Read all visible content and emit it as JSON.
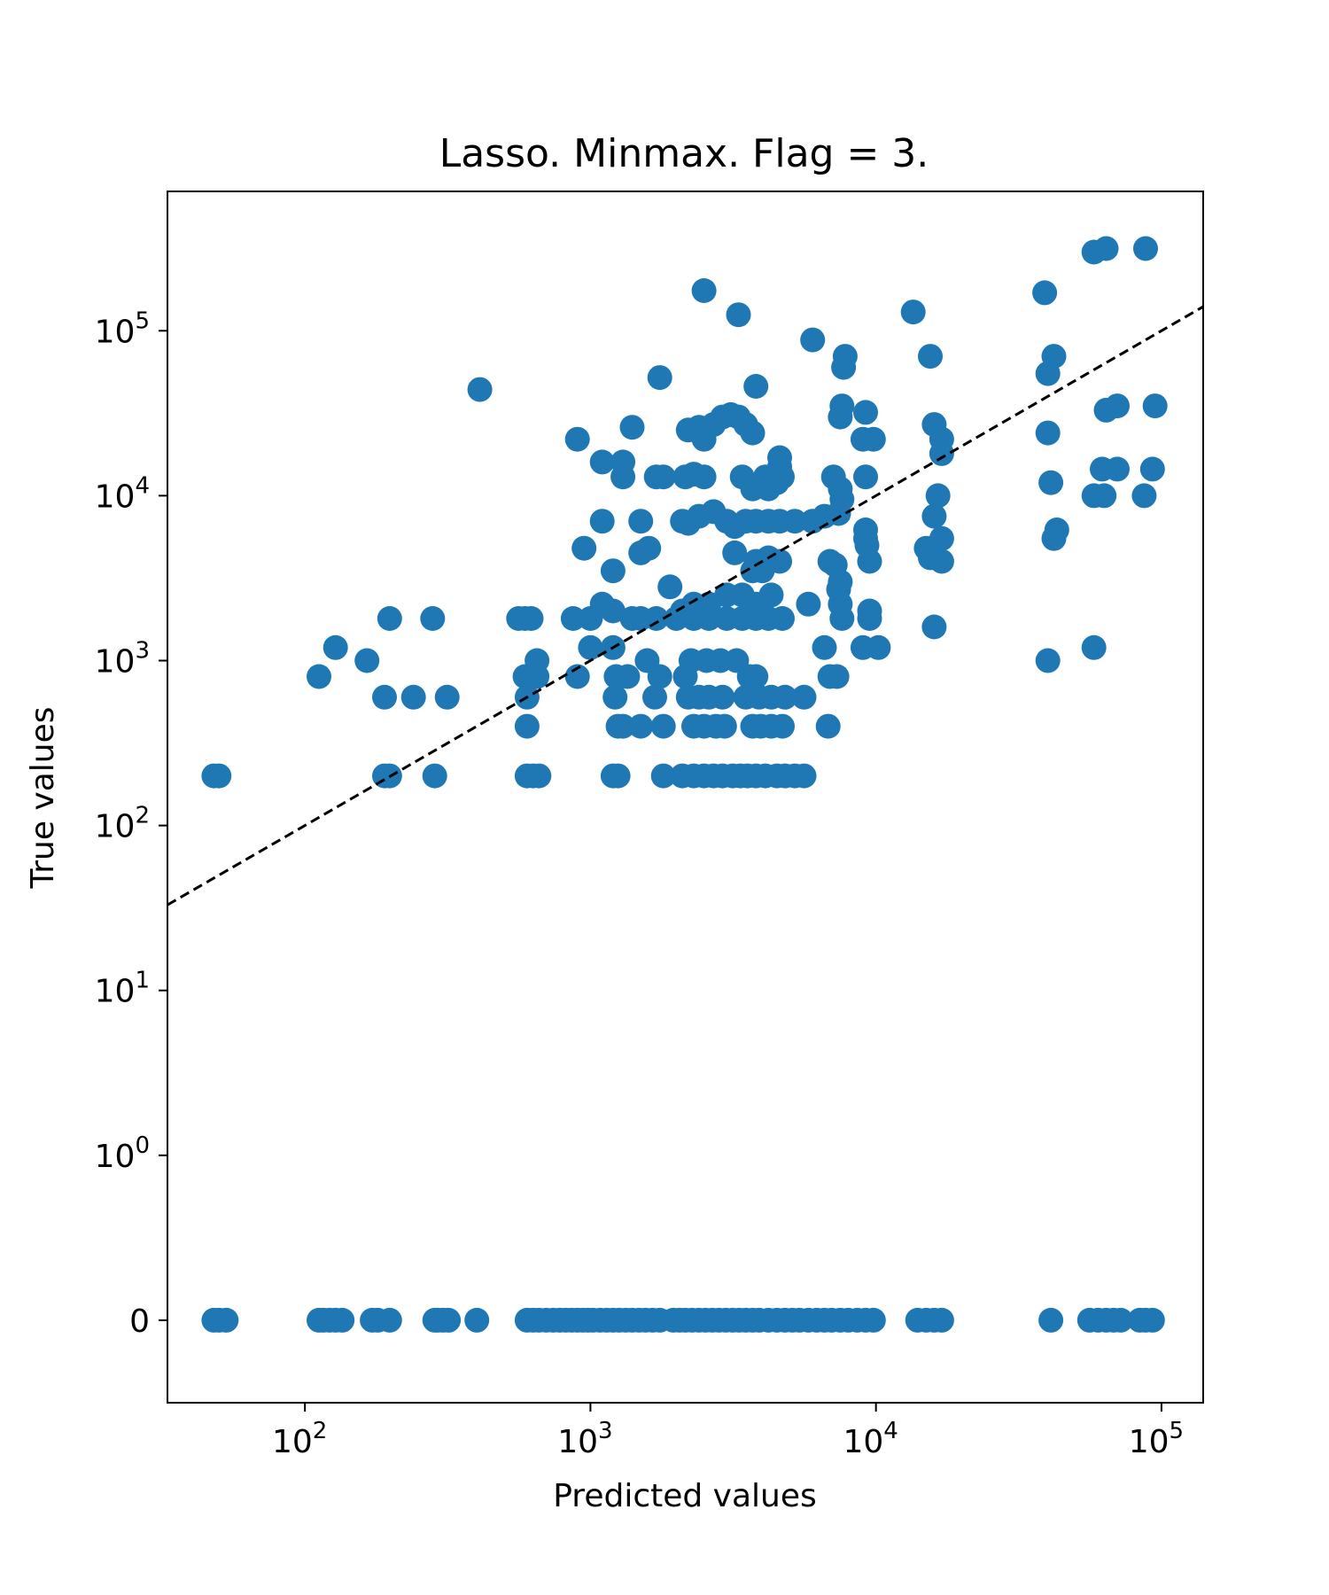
{
  "chart_data": {
    "type": "scatter",
    "title": "Lasso. Minmax. Flag = 3.",
    "xlabel": "Predicted values",
    "ylabel": "True values",
    "x_scale": "log",
    "y_scale": "symlog",
    "xlim": [
      33,
      140000
    ],
    "ylim": [
      -0.5,
      700000
    ],
    "x_ticks": [
      {
        "value": 100,
        "base": "10",
        "exp": "2"
      },
      {
        "value": 1000,
        "base": "10",
        "exp": "3"
      },
      {
        "value": 10000,
        "base": "10",
        "exp": "4"
      },
      {
        "value": 100000,
        "base": "10",
        "exp": "5"
      }
    ],
    "y_ticks": [
      {
        "value": 0,
        "text": "0"
      },
      {
        "value": 1,
        "base": "10",
        "exp": "0"
      },
      {
        "value": 10,
        "base": "10",
        "exp": "1"
      },
      {
        "value": 100,
        "base": "10",
        "exp": "2"
      },
      {
        "value": 1000,
        "base": "10",
        "exp": "3"
      },
      {
        "value": 10000,
        "base": "10",
        "exp": "4"
      },
      {
        "value": 100000,
        "base": "10",
        "exp": "5"
      }
    ],
    "reference_line": {
      "style": "dashed",
      "color": "#000000",
      "description": "y = x"
    },
    "marker_color": "#1f77b4",
    "grid": false,
    "points": [
      [
        48,
        0
      ],
      [
        50,
        0
      ],
      [
        53,
        0
      ],
      [
        112,
        0
      ],
      [
        116,
        0
      ],
      [
        122,
        0
      ],
      [
        128,
        0
      ],
      [
        135,
        0
      ],
      [
        172,
        0
      ],
      [
        180,
        0
      ],
      [
        198,
        0
      ],
      [
        285,
        0
      ],
      [
        292,
        0
      ],
      [
        305,
        0
      ],
      [
        318,
        0
      ],
      [
        400,
        0
      ],
      [
        600,
        0
      ],
      [
        630,
        0
      ],
      [
        660,
        0
      ],
      [
        700,
        0
      ],
      [
        740,
        0
      ],
      [
        780,
        0
      ],
      [
        820,
        0
      ],
      [
        860,
        0
      ],
      [
        900,
        0
      ],
      [
        940,
        0
      ],
      [
        980,
        0
      ],
      [
        1020,
        0
      ],
      [
        1080,
        0
      ],
      [
        1140,
        0
      ],
      [
        1200,
        0
      ],
      [
        1260,
        0
      ],
      [
        1330,
        0
      ],
      [
        1400,
        0
      ],
      [
        1480,
        0
      ],
      [
        1560,
        0
      ],
      [
        1650,
        0
      ],
      [
        1750,
        0
      ],
      [
        1950,
        0
      ],
      [
        2050,
        0
      ],
      [
        2150,
        0
      ],
      [
        2270,
        0
      ],
      [
        2400,
        0
      ],
      [
        2530,
        0
      ],
      [
        2670,
        0
      ],
      [
        2820,
        0
      ],
      [
        2980,
        0
      ],
      [
        3150,
        0
      ],
      [
        3320,
        0
      ],
      [
        3500,
        0
      ],
      [
        3700,
        0
      ],
      [
        3900,
        0
      ],
      [
        4200,
        0
      ],
      [
        4500,
        0
      ],
      [
        4800,
        0
      ],
      [
        5100,
        0
      ],
      [
        5400,
        0
      ],
      [
        5800,
        0
      ],
      [
        6200,
        0
      ],
      [
        6600,
        0
      ],
      [
        7000,
        0
      ],
      [
        7500,
        0
      ],
      [
        8000,
        0
      ],
      [
        8600,
        0
      ],
      [
        9200,
        0
      ],
      [
        9800,
        0
      ],
      [
        14000,
        0
      ],
      [
        15000,
        0
      ],
      [
        16000,
        0
      ],
      [
        17000,
        0
      ],
      [
        41000,
        0
      ],
      [
        56000,
        0
      ],
      [
        60000,
        0
      ],
      [
        64000,
        0
      ],
      [
        68000,
        0
      ],
      [
        72000,
        0
      ],
      [
        84000,
        0
      ],
      [
        88000,
        0
      ],
      [
        93000,
        0
      ],
      [
        48,
        200
      ],
      [
        50,
        200
      ],
      [
        190,
        200
      ],
      [
        198,
        200
      ],
      [
        285,
        200
      ],
      [
        600,
        200
      ],
      [
        630,
        200
      ],
      [
        660,
        200
      ],
      [
        1200,
        200
      ],
      [
        1250,
        200
      ],
      [
        1800,
        200
      ],
      [
        2100,
        200
      ],
      [
        2300,
        200
      ],
      [
        2500,
        200
      ],
      [
        2700,
        200
      ],
      [
        2900,
        200
      ],
      [
        3150,
        200
      ],
      [
        3350,
        200
      ],
      [
        3550,
        200
      ],
      [
        3800,
        200
      ],
      [
        4100,
        200
      ],
      [
        4500,
        200
      ],
      [
        4800,
        200
      ],
      [
        5200,
        200
      ],
      [
        5600,
        200
      ],
      [
        600,
        400
      ],
      [
        1250,
        400
      ],
      [
        1300,
        400
      ],
      [
        1500,
        400
      ],
      [
        1800,
        400
      ],
      [
        2300,
        400
      ],
      [
        2500,
        400
      ],
      [
        2750,
        400
      ],
      [
        2950,
        400
      ],
      [
        3700,
        400
      ],
      [
        3950,
        400
      ],
      [
        4300,
        400
      ],
      [
        4700,
        400
      ],
      [
        6800,
        400
      ],
      [
        190,
        600
      ],
      [
        240,
        600
      ],
      [
        315,
        600
      ],
      [
        600,
        600
      ],
      [
        1220,
        600
      ],
      [
        1680,
        600
      ],
      [
        2200,
        600
      ],
      [
        2400,
        600
      ],
      [
        2600,
        600
      ],
      [
        2900,
        600
      ],
      [
        3500,
        600
      ],
      [
        3900,
        600
      ],
      [
        4300,
        600
      ],
      [
        4800,
        600
      ],
      [
        5600,
        600
      ],
      [
        112,
        800
      ],
      [
        590,
        800
      ],
      [
        650,
        800
      ],
      [
        900,
        800
      ],
      [
        1230,
        800
      ],
      [
        1350,
        800
      ],
      [
        1750,
        800
      ],
      [
        2150,
        800
      ],
      [
        3600,
        800
      ],
      [
        3800,
        800
      ],
      [
        6900,
        800
      ],
      [
        7300,
        800
      ],
      [
        128,
        1200
      ],
      [
        1000,
        1200
      ],
      [
        1200,
        1200
      ],
      [
        6600,
        1200
      ],
      [
        9000,
        1200
      ],
      [
        10200,
        1200
      ],
      [
        58000,
        1200
      ],
      [
        165,
        1000
      ],
      [
        650,
        1000
      ],
      [
        1580,
        1000
      ],
      [
        2250,
        1000
      ],
      [
        2550,
        1000
      ],
      [
        2850,
        1000
      ],
      [
        3250,
        1000
      ],
      [
        40000,
        1000
      ],
      [
        198,
        1800
      ],
      [
        280,
        1800
      ],
      [
        560,
        1800
      ],
      [
        590,
        1800
      ],
      [
        620,
        1800
      ],
      [
        870,
        1800
      ],
      [
        1000,
        1800
      ],
      [
        1400,
        1800
      ],
      [
        1500,
        1800
      ],
      [
        1700,
        1800
      ],
      [
        2000,
        1800
      ],
      [
        2300,
        1800
      ],
      [
        2600,
        1800
      ],
      [
        3000,
        1800
      ],
      [
        3400,
        1800
      ],
      [
        3800,
        1800
      ],
      [
        4200,
        1800
      ],
      [
        4700,
        1800
      ],
      [
        7600,
        1800
      ],
      [
        9500,
        1800
      ],
      [
        1100,
        2200
      ],
      [
        1200,
        2000
      ],
      [
        2100,
        2000
      ],
      [
        2300,
        2200
      ],
      [
        2600,
        2200
      ],
      [
        3000,
        2500
      ],
      [
        3400,
        2500
      ],
      [
        3800,
        2200
      ],
      [
        4300,
        2500
      ],
      [
        5800,
        2200
      ],
      [
        7500,
        2200
      ],
      [
        9500,
        2000
      ],
      [
        16000,
        1600
      ],
      [
        1900,
        2800
      ],
      [
        7400,
        2700
      ],
      [
        7500,
        3000
      ],
      [
        3700,
        3500
      ],
      [
        4000,
        3500
      ],
      [
        1200,
        3500
      ],
      [
        3800,
        4000
      ],
      [
        4200,
        4200
      ],
      [
        4600,
        4000
      ],
      [
        6900,
        4000
      ],
      [
        7200,
        3800
      ],
      [
        9500,
        4000
      ],
      [
        15500,
        4200
      ],
      [
        17000,
        4000
      ],
      [
        950,
        4800
      ],
      [
        1500,
        4500
      ],
      [
        1600,
        4800
      ],
      [
        3200,
        4500
      ],
      [
        9200,
        5500
      ],
      [
        15000,
        4800
      ],
      [
        17000,
        5500
      ],
      [
        42000,
        5500
      ],
      [
        43000,
        6200
      ],
      [
        1100,
        7000
      ],
      [
        1500,
        7000
      ],
      [
        2100,
        7000
      ],
      [
        2200,
        6800
      ],
      [
        2400,
        7500
      ],
      [
        2700,
        8000
      ],
      [
        3000,
        7000
      ],
      [
        3200,
        6500
      ],
      [
        3500,
        7000
      ],
      [
        3800,
        7000
      ],
      [
        4200,
        7000
      ],
      [
        4600,
        7000
      ],
      [
        5200,
        7000
      ],
      [
        6000,
        7000
      ],
      [
        6600,
        7500
      ],
      [
        7400,
        7800
      ],
      [
        9200,
        6200
      ],
      [
        9300,
        5000
      ],
      [
        16000,
        7500
      ],
      [
        1800,
        13000
      ],
      [
        2150,
        13000
      ],
      [
        2300,
        13500
      ],
      [
        2500,
        13000
      ],
      [
        3400,
        13000
      ],
      [
        3700,
        11000
      ],
      [
        4100,
        13000
      ],
      [
        4200,
        11000
      ],
      [
        4500,
        12000
      ],
      [
        4600,
        15000
      ],
      [
        4700,
        13000
      ],
      [
        7100,
        13000
      ],
      [
        7500,
        11000
      ],
      [
        7600,
        9500
      ],
      [
        9200,
        13000
      ],
      [
        16500,
        10000
      ],
      [
        41000,
        12000
      ],
      [
        1100,
        16000
      ],
      [
        1300,
        16000
      ],
      [
        1300,
        13000
      ],
      [
        1700,
        13000
      ],
      [
        4600,
        17000
      ],
      [
        17000,
        18000
      ],
      [
        58000,
        10000
      ],
      [
        63000,
        10000
      ],
      [
        87000,
        10000
      ],
      [
        62000,
        14500
      ],
      [
        70000,
        14500
      ],
      [
        93000,
        14500
      ],
      [
        900,
        22000
      ],
      [
        1400,
        26000
      ],
      [
        2200,
        25000
      ],
      [
        2400,
        26000
      ],
      [
        2500,
        22000
      ],
      [
        2700,
        27000
      ],
      [
        2900,
        30000
      ],
      [
        3100,
        31000
      ],
      [
        3300,
        30000
      ],
      [
        3500,
        27000
      ],
      [
        3700,
        24000
      ],
      [
        9000,
        22000
      ],
      [
        9800,
        22000
      ],
      [
        16000,
        27000
      ],
      [
        17000,
        22000
      ],
      [
        40000,
        24000
      ],
      [
        7500,
        30000
      ],
      [
        7600,
        35000
      ],
      [
        9200,
        32000
      ],
      [
        64000,
        33000
      ],
      [
        70000,
        35000
      ],
      [
        95000,
        35000
      ],
      [
        410,
        44000
      ],
      [
        1750,
        52000
      ],
      [
        3800,
        46000
      ],
      [
        40000,
        55000
      ],
      [
        7700,
        60000
      ],
      [
        6000,
        88000
      ],
      [
        7800,
        70000
      ],
      [
        15500,
        70000
      ],
      [
        42000,
        70000
      ],
      [
        2500,
        175000
      ],
      [
        3300,
        125000
      ],
      [
        13500,
        130000
      ],
      [
        39000,
        170000
      ],
      [
        58000,
        300000
      ],
      [
        64000,
        315000
      ],
      [
        88000,
        315000
      ]
    ]
  }
}
